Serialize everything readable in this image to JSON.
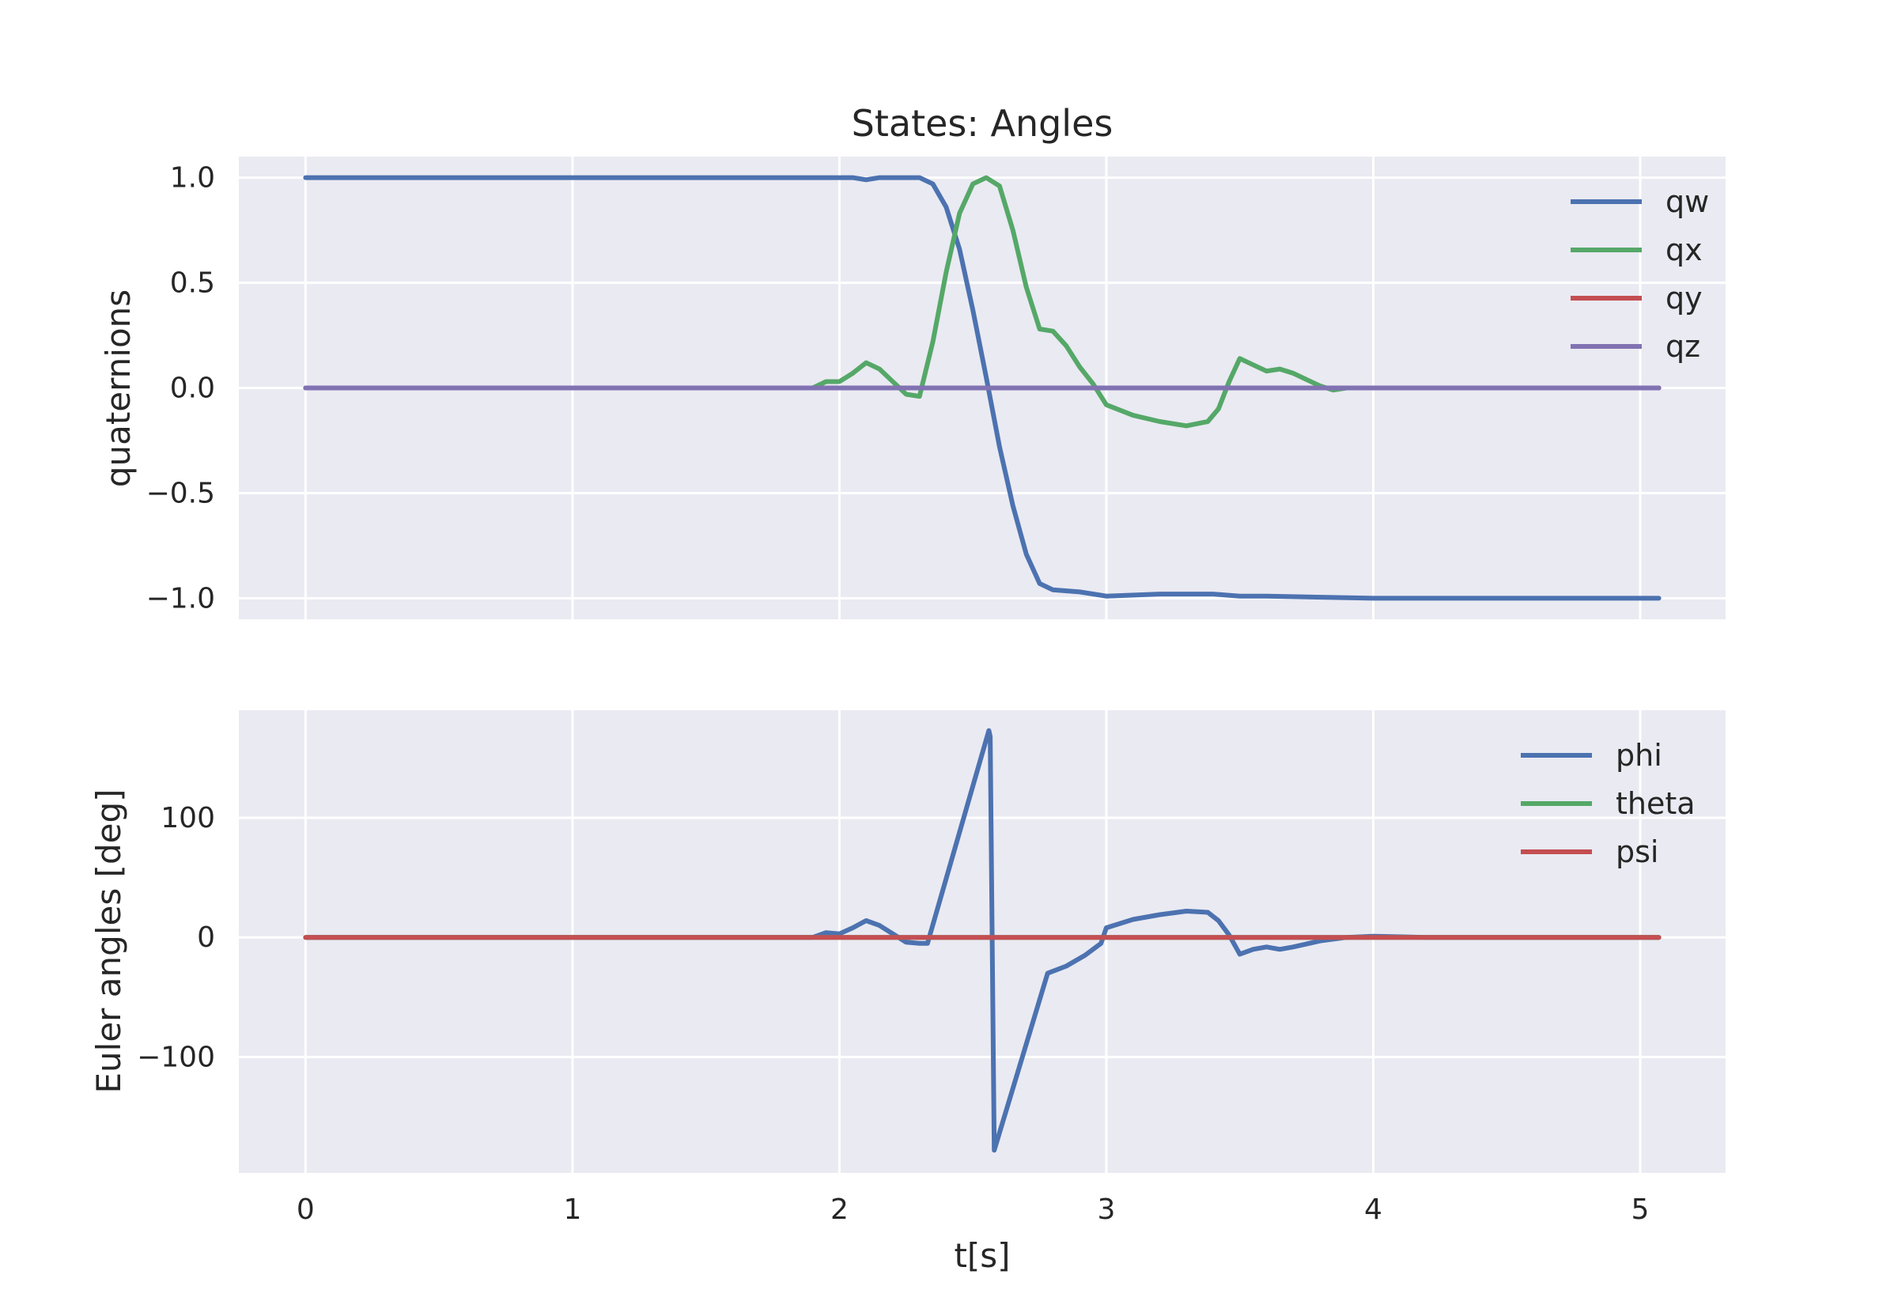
{
  "colors": {
    "axes_bg": "#eaeaf2",
    "grid": "#ffffff",
    "blue": "#4c72b0",
    "green": "#55a868",
    "red": "#c44e52",
    "purple": "#8172b2"
  },
  "chart_data": [
    {
      "type": "line",
      "title": "States: Angles",
      "xlabel": "",
      "ylabel": "quaternions",
      "xlim": [
        -0.25,
        5.32
      ],
      "ylim": [
        -1.1,
        1.1
      ],
      "xticks": [
        0,
        1,
        2,
        3,
        4,
        5
      ],
      "xtick_labels": [],
      "yticks": [
        1.0,
        0.5,
        0.0,
        -0.5,
        -1.0
      ],
      "ytick_labels": [
        "1.0",
        "0.5",
        "0.0",
        "−0.5",
        "−1.0"
      ],
      "grid": true,
      "legend": "top-right",
      "series": [
        {
          "name": "qw",
          "color": "blue",
          "x": [
            0,
            1.0,
            2.0,
            2.05,
            2.1,
            2.15,
            2.2,
            2.3,
            2.35,
            2.4,
            2.45,
            2.5,
            2.55,
            2.6,
            2.65,
            2.7,
            2.75,
            2.8,
            2.9,
            3.0,
            3.2,
            3.4,
            3.5,
            3.6,
            4.0,
            4.5,
            5.07
          ],
          "y": [
            1.0,
            1.0,
            1.0,
            1.0,
            0.99,
            1.0,
            1.0,
            1.0,
            0.97,
            0.86,
            0.66,
            0.37,
            0.05,
            -0.28,
            -0.56,
            -0.79,
            -0.93,
            -0.96,
            -0.97,
            -0.99,
            -0.98,
            -0.98,
            -0.99,
            -0.99,
            -1.0,
            -1.0,
            -1.0
          ]
        },
        {
          "name": "qx",
          "color": "green",
          "x": [
            0,
            1.7,
            1.85,
            1.9,
            1.95,
            2.0,
            2.05,
            2.1,
            2.15,
            2.2,
            2.25,
            2.3,
            2.35,
            2.4,
            2.45,
            2.5,
            2.55,
            2.6,
            2.65,
            2.7,
            2.75,
            2.8,
            2.85,
            2.9,
            2.95,
            3.0,
            3.1,
            3.2,
            3.3,
            3.38,
            3.42,
            3.46,
            3.5,
            3.55,
            3.6,
            3.65,
            3.7,
            3.75,
            3.8,
            3.85,
            3.9,
            4.0,
            5.07
          ],
          "y": [
            0.0,
            0.0,
            0.0,
            0.0,
            0.03,
            0.03,
            0.07,
            0.12,
            0.09,
            0.03,
            -0.03,
            -0.04,
            0.22,
            0.55,
            0.83,
            0.97,
            1.0,
            0.96,
            0.75,
            0.48,
            0.28,
            0.27,
            0.2,
            0.1,
            0.02,
            -0.08,
            -0.13,
            -0.16,
            -0.18,
            -0.16,
            -0.1,
            0.03,
            0.14,
            0.11,
            0.08,
            0.09,
            0.07,
            0.04,
            0.01,
            -0.01,
            0.0,
            0.0,
            0.0
          ]
        },
        {
          "name": "qy",
          "color": "red",
          "x": [
            0,
            5.07
          ],
          "y": [
            0.0,
            0.0
          ]
        },
        {
          "name": "qz",
          "color": "purple",
          "x": [
            0,
            5.07
          ],
          "y": [
            0.0,
            0.0
          ]
        }
      ]
    },
    {
      "type": "line",
      "title": "",
      "xlabel": "t[s]",
      "ylabel": "Euler angles [deg]",
      "xlim": [
        -0.25,
        5.32
      ],
      "ylim": [
        -197,
        190
      ],
      "xticks": [
        0,
        1,
        2,
        3,
        4,
        5
      ],
      "xtick_labels": [
        "0",
        "1",
        "2",
        "3",
        "4",
        "5"
      ],
      "yticks": [
        100,
        0,
        -100
      ],
      "ytick_labels": [
        "100",
        "0",
        "−100"
      ],
      "grid": true,
      "legend": "top-right",
      "series": [
        {
          "name": "phi",
          "color": "blue",
          "x": [
            0,
            1.7,
            1.85,
            1.9,
            1.95,
            2.0,
            2.05,
            2.1,
            2.15,
            2.2,
            2.25,
            2.3,
            2.33,
            2.56,
            2.565,
            2.58,
            2.78,
            2.85,
            2.92,
            2.98,
            3.0,
            3.1,
            3.2,
            3.3,
            3.38,
            3.42,
            3.46,
            3.5,
            3.55,
            3.6,
            3.65,
            3.7,
            3.8,
            3.9,
            4.0,
            4.2,
            5.07
          ],
          "y": [
            0,
            0,
            0,
            0,
            4,
            3,
            8,
            14,
            10,
            3,
            -4,
            -5,
            -5,
            173,
            168,
            -178,
            -30,
            -24,
            -15,
            -5,
            8,
            15,
            19,
            22,
            21,
            14,
            2,
            -14,
            -10,
            -8,
            -10,
            -8,
            -3,
            0,
            1,
            0,
            0
          ]
        },
        {
          "name": "theta",
          "color": "green",
          "x": [
            0,
            5.07
          ],
          "y": [
            0,
            0
          ]
        },
        {
          "name": "psi",
          "color": "red",
          "x": [
            0,
            5.07
          ],
          "y": [
            0,
            0
          ]
        }
      ]
    }
  ]
}
